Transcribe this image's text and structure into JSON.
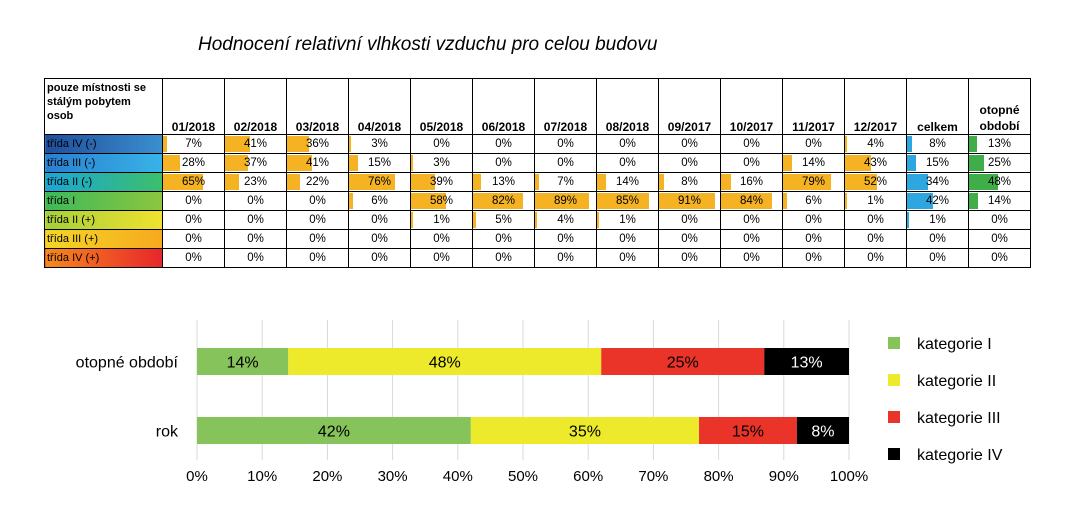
{
  "title": "Hodnocení relativní vlhkosti vzduchu pro celou budovu",
  "table": {
    "corner_label": "pouze místnosti se stálým pobytem osob",
    "columns": [
      "01/2018",
      "02/2018",
      "03/2018",
      "04/2018",
      "05/2018",
      "06/2018",
      "07/2018",
      "08/2018",
      "09/2017",
      "10/2017",
      "11/2017",
      "12/2017",
      "celkem",
      "otopné období"
    ],
    "rows": [
      {
        "label": "třída IV (-)",
        "values": [
          "7%",
          "41%",
          "36%",
          "3%",
          "0%",
          "0%",
          "0%",
          "0%",
          "0%",
          "0%",
          "0%",
          "4%",
          "8%",
          "13%"
        ],
        "nums": [
          7,
          41,
          36,
          3,
          0,
          0,
          0,
          0,
          0,
          0,
          0,
          4,
          8,
          13
        ]
      },
      {
        "label": "třída III (-)",
        "values": [
          "28%",
          "37%",
          "41%",
          "15%",
          "3%",
          "0%",
          "0%",
          "0%",
          "0%",
          "0%",
          "14%",
          "43%",
          "15%",
          "25%"
        ],
        "nums": [
          28,
          37,
          41,
          15,
          3,
          0,
          0,
          0,
          0,
          0,
          14,
          43,
          15,
          25
        ]
      },
      {
        "label": "třída II (-)",
        "values": [
          "65%",
          "23%",
          "22%",
          "76%",
          "39%",
          "13%",
          "7%",
          "14%",
          "8%",
          "16%",
          "79%",
          "52%",
          "34%",
          "48%"
        ],
        "nums": [
          65,
          23,
          22,
          76,
          39,
          13,
          7,
          14,
          8,
          16,
          79,
          52,
          34,
          48
        ]
      },
      {
        "label": "třída I",
        "values": [
          "0%",
          "0%",
          "0%",
          "6%",
          "58%",
          "82%",
          "89%",
          "85%",
          "91%",
          "84%",
          "6%",
          "1%",
          "42%",
          "14%"
        ],
        "nums": [
          0,
          0,
          0,
          6,
          58,
          82,
          89,
          85,
          91,
          84,
          6,
          1,
          42,
          14
        ]
      },
      {
        "label": "třída II (+)",
        "values": [
          "0%",
          "0%",
          "0%",
          "0%",
          "1%",
          "5%",
          "4%",
          "1%",
          "0%",
          "0%",
          "0%",
          "0%",
          "1%",
          "0%"
        ],
        "nums": [
          0,
          0,
          0,
          0,
          1,
          5,
          4,
          1,
          0,
          0,
          0,
          0,
          1,
          0
        ]
      },
      {
        "label": "třída III (+)",
        "values": [
          "0%",
          "0%",
          "0%",
          "0%",
          "0%",
          "0%",
          "0%",
          "0%",
          "0%",
          "0%",
          "0%",
          "0%",
          "0%",
          "0%"
        ],
        "nums": [
          0,
          0,
          0,
          0,
          0,
          0,
          0,
          0,
          0,
          0,
          0,
          0,
          0,
          0
        ]
      },
      {
        "label": "třída IV (+)",
        "values": [
          "0%",
          "0%",
          "0%",
          "0%",
          "0%",
          "0%",
          "0%",
          "0%",
          "0%",
          "0%",
          "0%",
          "0%",
          "0%",
          "0%"
        ],
        "nums": [
          0,
          0,
          0,
          0,
          0,
          0,
          0,
          0,
          0,
          0,
          0,
          0,
          0,
          0
        ]
      }
    ],
    "colors": {
      "month_bar": "#f5b324",
      "total_bar": "#2ea7e0",
      "heating_bar": "#3fae49"
    },
    "row_label_gradients": [
      [
        "#1f4e9c",
        "#3b8fd0"
      ],
      [
        "#2a7fcf",
        "#37b3e8"
      ],
      [
        "#1aa6d8",
        "#3cbf6a"
      ],
      [
        "#3db95a",
        "#8dc63f"
      ],
      [
        "#a6cf39",
        "#f0e22f"
      ],
      [
        "#f3d626",
        "#f7a91e"
      ],
      [
        "#f6881f",
        "#e8262a"
      ]
    ]
  },
  "chart_data": {
    "type": "bar",
    "orientation": "horizontal-stacked-100",
    "categories": [
      "otopné období",
      "rok"
    ],
    "series": [
      {
        "name": "kategorie I",
        "values": [
          14,
          42
        ],
        "labels": [
          "14%",
          "42%"
        ],
        "color": "#86c35a"
      },
      {
        "name": "kategorie II",
        "values": [
          48,
          35
        ],
        "labels": [
          "48%",
          "35%"
        ],
        "color": "#ecea2b"
      },
      {
        "name": "kategorie III",
        "values": [
          25,
          15
        ],
        "labels": [
          "25%",
          "15%"
        ],
        "color": "#ea3329"
      },
      {
        "name": "kategorie IV",
        "values": [
          13,
          8
        ],
        "labels": [
          "13%",
          "8%"
        ],
        "color": "#000000"
      }
    ],
    "xlim": [
      0,
      100
    ],
    "xticks": [
      "0%",
      "10%",
      "20%",
      "30%",
      "40%",
      "50%",
      "60%",
      "70%",
      "80%",
      "90%",
      "100%"
    ],
    "grid": true,
    "legend": "right"
  }
}
